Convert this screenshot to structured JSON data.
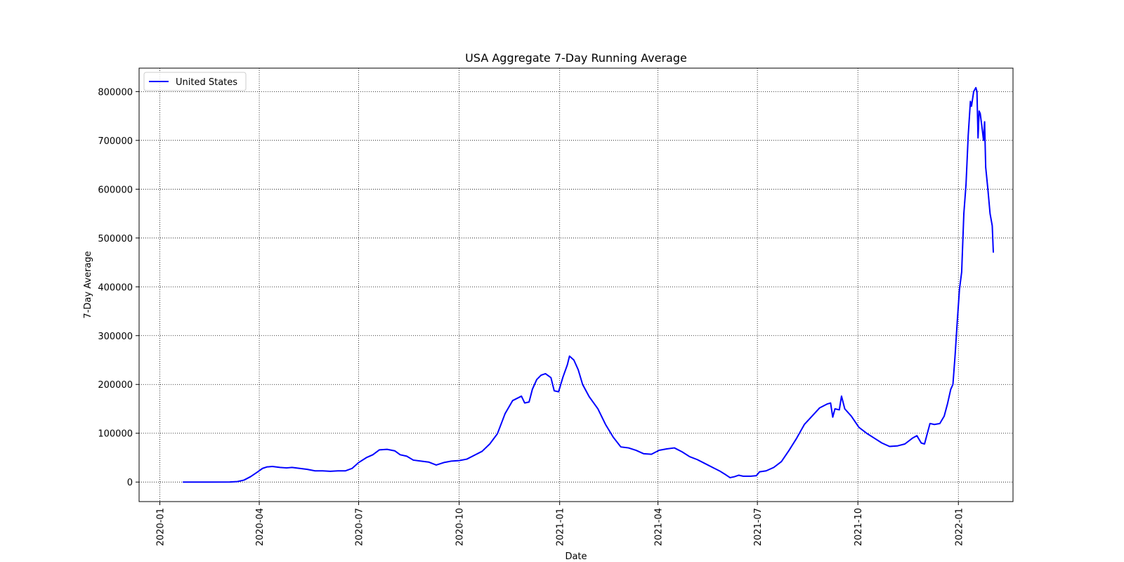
{
  "chart_data": {
    "type": "line",
    "title": "USA Aggregate 7-Day Running Average",
    "xlabel": "Date",
    "ylabel": "7-Day Average",
    "xlim": [
      "2019-12-13",
      "2022-02-20"
    ],
    "ylim": [
      -40000,
      848000
    ],
    "grid": true,
    "grid_style": "dotted",
    "legend_position": "top-left",
    "x_ticks": [
      "2020-01-01",
      "2020-04-01",
      "2020-07-01",
      "2020-10-01",
      "2021-01-01",
      "2021-04-01",
      "2021-07-01",
      "2021-10-01",
      "2022-01-01"
    ],
    "x_tick_labels": [
      "2020-01",
      "2020-04",
      "2020-07",
      "2020-10",
      "2021-01",
      "2021-04",
      "2021-07",
      "2021-10",
      "2022-01"
    ],
    "y_ticks": [
      0,
      100000,
      200000,
      300000,
      400000,
      500000,
      600000,
      700000,
      800000
    ],
    "y_tick_labels": [
      "0",
      "100000",
      "200000",
      "300000",
      "400000",
      "500000",
      "600000",
      "700000",
      "800000"
    ],
    "series": [
      {
        "name": "United States",
        "color": "#0000ff",
        "points": [
          [
            "2020-01-22",
            0
          ],
          [
            "2020-02-15",
            0
          ],
          [
            "2020-03-05",
            200
          ],
          [
            "2020-03-12",
            1000
          ],
          [
            "2020-03-18",
            4000
          ],
          [
            "2020-03-24",
            11000
          ],
          [
            "2020-03-30",
            20000
          ],
          [
            "2020-04-04",
            28000
          ],
          [
            "2020-04-08",
            31000
          ],
          [
            "2020-04-13",
            32000
          ],
          [
            "2020-04-20",
            30000
          ],
          [
            "2020-04-26",
            29000
          ],
          [
            "2020-05-01",
            30000
          ],
          [
            "2020-05-08",
            28000
          ],
          [
            "2020-05-15",
            26000
          ],
          [
            "2020-05-22",
            23000
          ],
          [
            "2020-05-29",
            23000
          ],
          [
            "2020-06-05",
            22000
          ],
          [
            "2020-06-12",
            23000
          ],
          [
            "2020-06-19",
            23000
          ],
          [
            "2020-06-25",
            28000
          ],
          [
            "2020-07-01",
            40000
          ],
          [
            "2020-07-08",
            50000
          ],
          [
            "2020-07-14",
            56000
          ],
          [
            "2020-07-20",
            66000
          ],
          [
            "2020-07-27",
            67000
          ],
          [
            "2020-08-03",
            64000
          ],
          [
            "2020-08-08",
            56000
          ],
          [
            "2020-08-14",
            53000
          ],
          [
            "2020-08-20",
            45000
          ],
          [
            "2020-08-27",
            43000
          ],
          [
            "2020-09-03",
            41000
          ],
          [
            "2020-09-10",
            35000
          ],
          [
            "2020-09-17",
            40000
          ],
          [
            "2020-09-24",
            43000
          ],
          [
            "2020-10-01",
            44000
          ],
          [
            "2020-10-08",
            47000
          ],
          [
            "2020-10-15",
            55000
          ],
          [
            "2020-10-22",
            63000
          ],
          [
            "2020-10-29",
            78000
          ],
          [
            "2020-11-05",
            99000
          ],
          [
            "2020-11-12",
            140000
          ],
          [
            "2020-11-19",
            167000
          ],
          [
            "2020-11-27",
            176000
          ],
          [
            "2020-11-30",
            162000
          ],
          [
            "2020-12-04",
            164000
          ],
          [
            "2020-12-07",
            190000
          ],
          [
            "2020-12-11",
            210000
          ],
          [
            "2020-12-15",
            219000
          ],
          [
            "2020-12-19",
            222000
          ],
          [
            "2020-12-24",
            214000
          ],
          [
            "2020-12-27",
            187000
          ],
          [
            "2020-12-31",
            185000
          ],
          [
            "2021-01-04",
            215000
          ],
          [
            "2021-01-08",
            240000
          ],
          [
            "2021-01-10",
            258000
          ],
          [
            "2021-01-14",
            250000
          ],
          [
            "2021-01-18",
            230000
          ],
          [
            "2021-01-22",
            200000
          ],
          [
            "2021-01-28",
            175000
          ],
          [
            "2021-02-05",
            150000
          ],
          [
            "2021-02-12",
            118000
          ],
          [
            "2021-02-19",
            92000
          ],
          [
            "2021-02-26",
            72000
          ],
          [
            "2021-03-05",
            70000
          ],
          [
            "2021-03-12",
            65000
          ],
          [
            "2021-03-19",
            58000
          ],
          [
            "2021-03-26",
            57000
          ],
          [
            "2021-04-02",
            65000
          ],
          [
            "2021-04-09",
            68000
          ],
          [
            "2021-04-16",
            70000
          ],
          [
            "2021-04-23",
            62000
          ],
          [
            "2021-04-30",
            52000
          ],
          [
            "2021-05-07",
            46000
          ],
          [
            "2021-05-14",
            38000
          ],
          [
            "2021-05-21",
            30000
          ],
          [
            "2021-05-28",
            22000
          ],
          [
            "2021-06-02",
            15000
          ],
          [
            "2021-06-06",
            9000
          ],
          [
            "2021-06-10",
            11000
          ],
          [
            "2021-06-14",
            14000
          ],
          [
            "2021-06-18",
            12000
          ],
          [
            "2021-06-25",
            12000
          ],
          [
            "2021-06-30",
            13000
          ],
          [
            "2021-07-03",
            21000
          ],
          [
            "2021-07-09",
            23000
          ],
          [
            "2021-07-16",
            30000
          ],
          [
            "2021-07-23",
            42000
          ],
          [
            "2021-07-30",
            65000
          ],
          [
            "2021-08-06",
            90000
          ],
          [
            "2021-08-13",
            118000
          ],
          [
            "2021-08-20",
            135000
          ],
          [
            "2021-08-27",
            152000
          ],
          [
            "2021-09-03",
            160000
          ],
          [
            "2021-09-06",
            162000
          ],
          [
            "2021-09-08",
            133000
          ],
          [
            "2021-09-10",
            150000
          ],
          [
            "2021-09-14",
            148000
          ],
          [
            "2021-09-16",
            176000
          ],
          [
            "2021-09-19",
            150000
          ],
          [
            "2021-09-25",
            135000
          ],
          [
            "2021-10-02",
            112000
          ],
          [
            "2021-10-09",
            100000
          ],
          [
            "2021-10-16",
            90000
          ],
          [
            "2021-10-23",
            80000
          ],
          [
            "2021-10-30",
            73000
          ],
          [
            "2021-11-06",
            74000
          ],
          [
            "2021-11-13",
            78000
          ],
          [
            "2021-11-20",
            90000
          ],
          [
            "2021-11-24",
            95000
          ],
          [
            "2021-11-28",
            80000
          ],
          [
            "2021-12-01",
            78000
          ],
          [
            "2021-12-03",
            95000
          ],
          [
            "2021-12-06",
            120000
          ],
          [
            "2021-12-10",
            118000
          ],
          [
            "2021-12-15",
            120000
          ],
          [
            "2021-12-19",
            135000
          ],
          [
            "2021-12-22",
            160000
          ],
          [
            "2021-12-25",
            190000
          ],
          [
            "2021-12-27",
            200000
          ],
          [
            "2021-12-29",
            260000
          ],
          [
            "2021-12-31",
            330000
          ],
          [
            "2022-01-02",
            395000
          ],
          [
            "2022-01-04",
            430000
          ],
          [
            "2022-01-06",
            550000
          ],
          [
            "2022-01-08",
            610000
          ],
          [
            "2022-01-10",
            710000
          ],
          [
            "2022-01-12",
            780000
          ],
          [
            "2022-01-13",
            770000
          ],
          [
            "2022-01-15",
            800000
          ],
          [
            "2022-01-17",
            808000
          ],
          [
            "2022-01-18",
            800000
          ],
          [
            "2022-01-19",
            705000
          ],
          [
            "2022-01-20",
            760000
          ],
          [
            "2022-01-21",
            755000
          ],
          [
            "2022-01-23",
            720000
          ],
          [
            "2022-01-24",
            700000
          ],
          [
            "2022-01-25",
            738000
          ],
          [
            "2022-01-26",
            645000
          ],
          [
            "2022-01-28",
            600000
          ],
          [
            "2022-01-30",
            550000
          ],
          [
            "2022-02-01",
            525000
          ],
          [
            "2022-02-02",
            470000
          ]
        ]
      }
    ]
  }
}
